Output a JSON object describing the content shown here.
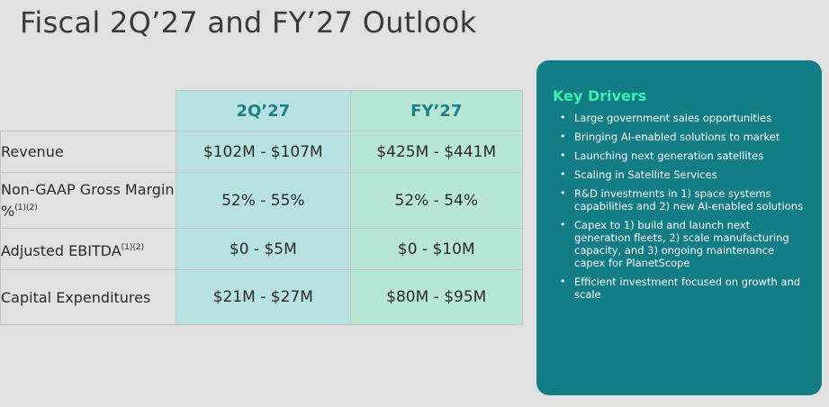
{
  "title": "Fiscal 2Q’27 and FY’27 Outlook",
  "table": {
    "columns": [
      "2Q’27",
      "FY’27"
    ],
    "rows": [
      {
        "label": "Revenue",
        "sup": "",
        "q2": "$102M - $107M",
        "fy": "$425M - $441M"
      },
      {
        "label": "Non-GAAP Gross Margin %",
        "sup": "(1)(2)",
        "q2": "52% - 55%",
        "fy": "52% - 54%"
      },
      {
        "label": "Adjusted EBITDA",
        "sup": "(1)(2)",
        "q2": "$0 - $5M",
        "fy": "$0 - $10M"
      },
      {
        "label": "Capital Expenditures",
        "sup": "",
        "q2": "$21M - $27M",
        "fy": "$80M - $95M"
      }
    ]
  },
  "drivers": {
    "title": "Key Drivers",
    "items": [
      "Large government sales opportunities",
      "Bringing AI-enabled solutions to market",
      "Launching next generation satellites",
      "Scaling in Satellite Services",
      "R&D investments in 1) space systems capabilities and 2) new AI-enabled solutions",
      "Capex to 1) build and launch next generation fleets, 2) scale manufacturing capacity, and 3) ongoing maintenance capex for PlanetScope",
      "Efficient investment focused on growth and scale"
    ]
  }
}
